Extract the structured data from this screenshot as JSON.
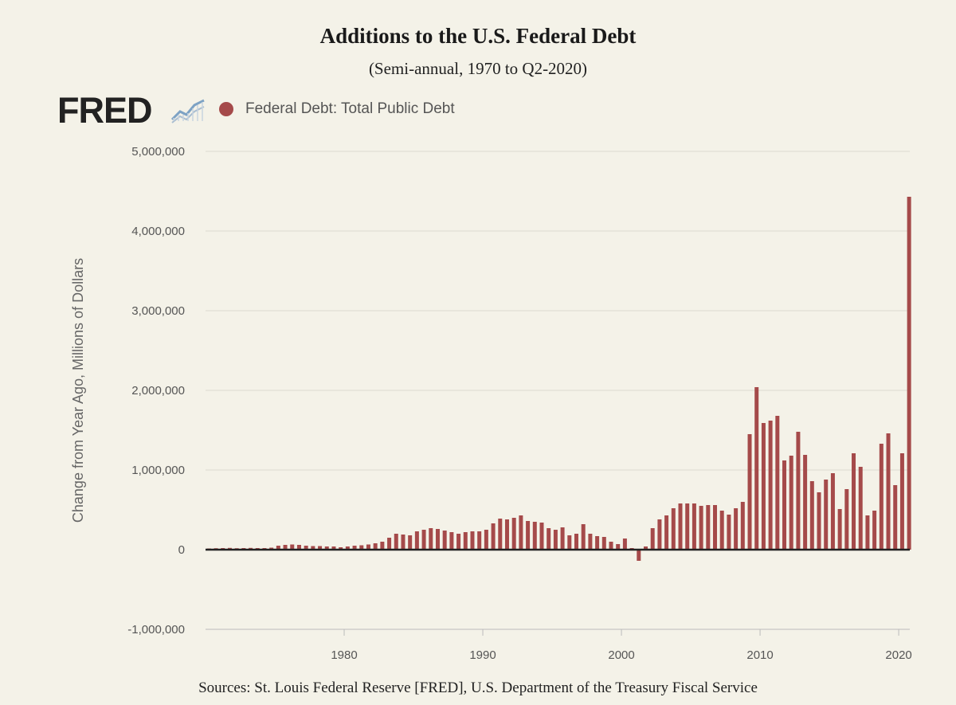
{
  "header": {
    "title": "Additions to the U.S. Federal Debt",
    "subtitle": "(Semi-annual, 1970 to Q2-2020)",
    "logo_text": "FRED",
    "logo_icon": "line-chart-icon"
  },
  "legend": {
    "label": "Federal Debt: Total Public Debt",
    "color": "#a54a4a"
  },
  "footer": {
    "sources": "Sources: St. Louis Federal Reserve [FRED], U.S. Department of the Treasury Fiscal Service"
  },
  "chart_data": {
    "type": "bar",
    "xlabel": "",
    "ylabel": "Change from Year Ago, Millions of Dollars",
    "ylim": [
      -1000000,
      5000000
    ],
    "yticks": [
      -1000000,
      0,
      1000000,
      2000000,
      3000000,
      4000000,
      5000000
    ],
    "ytick_labels": [
      "-1,000,000",
      "0",
      "1,000,000",
      "2,000,000",
      "3,000,000",
      "4,000,000",
      "5,000,000"
    ],
    "xlim": [
      1970,
      2020.8
    ],
    "xticks": [
      1980,
      1990,
      2000,
      2010,
      2020
    ],
    "xtick_labels": [
      "1980",
      "1990",
      "2000",
      "2010",
      "2020"
    ],
    "grid": "horizontal",
    "legend_position": "top-left",
    "bar_color": "#a54a4a",
    "series": [
      {
        "name": "Federal Debt: Total Public Debt",
        "x": [
          1970.0,
          1970.5,
          1971.0,
          1971.5,
          1972.0,
          1972.5,
          1973.0,
          1973.5,
          1974.0,
          1974.5,
          1975.0,
          1975.5,
          1976.0,
          1976.5,
          1977.0,
          1977.5,
          1978.0,
          1978.5,
          1979.0,
          1979.5,
          1980.0,
          1980.5,
          1981.0,
          1981.5,
          1982.0,
          1982.5,
          1983.0,
          1983.5,
          1984.0,
          1984.5,
          1985.0,
          1985.5,
          1986.0,
          1986.5,
          1987.0,
          1987.5,
          1988.0,
          1988.5,
          1989.0,
          1989.5,
          1990.0,
          1990.5,
          1991.0,
          1991.5,
          1992.0,
          1992.5,
          1993.0,
          1993.5,
          1994.0,
          1994.5,
          1995.0,
          1995.5,
          1996.0,
          1996.5,
          1997.0,
          1997.5,
          1998.0,
          1998.5,
          1999.0,
          1999.5,
          2000.0,
          2000.5,
          2001.0,
          2001.5,
          2002.0,
          2002.5,
          2003.0,
          2003.5,
          2004.0,
          2004.5,
          2005.0,
          2005.5,
          2006.0,
          2006.5,
          2007.0,
          2007.5,
          2008.0,
          2008.5,
          2009.0,
          2009.5,
          2010.0,
          2010.5,
          2011.0,
          2011.5,
          2012.0,
          2012.5,
          2013.0,
          2013.5,
          2014.0,
          2014.5,
          2015.0,
          2015.5,
          2016.0,
          2016.5,
          2017.0,
          2017.5,
          2018.0,
          2018.5,
          2019.0,
          2019.5,
          2020.0
        ],
        "values": [
          15000,
          18000,
          20000,
          22000,
          18000,
          20000,
          22000,
          20000,
          20000,
          25000,
          50000,
          60000,
          65000,
          60000,
          50000,
          45000,
          45000,
          40000,
          40000,
          30000,
          40000,
          50000,
          55000,
          65000,
          80000,
          100000,
          150000,
          200000,
          190000,
          180000,
          230000,
          250000,
          270000,
          260000,
          240000,
          220000,
          200000,
          220000,
          230000,
          230000,
          250000,
          330000,
          390000,
          380000,
          400000,
          430000,
          360000,
          350000,
          340000,
          270000,
          250000,
          280000,
          180000,
          200000,
          320000,
          200000,
          170000,
          160000,
          100000,
          70000,
          140000,
          20000,
          -140000,
          40000,
          270000,
          380000,
          430000,
          520000,
          580000,
          580000,
          580000,
          550000,
          560000,
          560000,
          490000,
          440000,
          520000,
          600000,
          1450000,
          2040000,
          1590000,
          1620000,
          1680000,
          1120000,
          1180000,
          1480000,
          1190000,
          860000,
          720000,
          880000,
          960000,
          510000,
          760000,
          1210000,
          1040000,
          430000,
          490000,
          1330000,
          1460000,
          810000,
          1210000
        ]
      }
    ],
    "final_bar": {
      "x": 2020.5,
      "value": 4430000
    }
  }
}
